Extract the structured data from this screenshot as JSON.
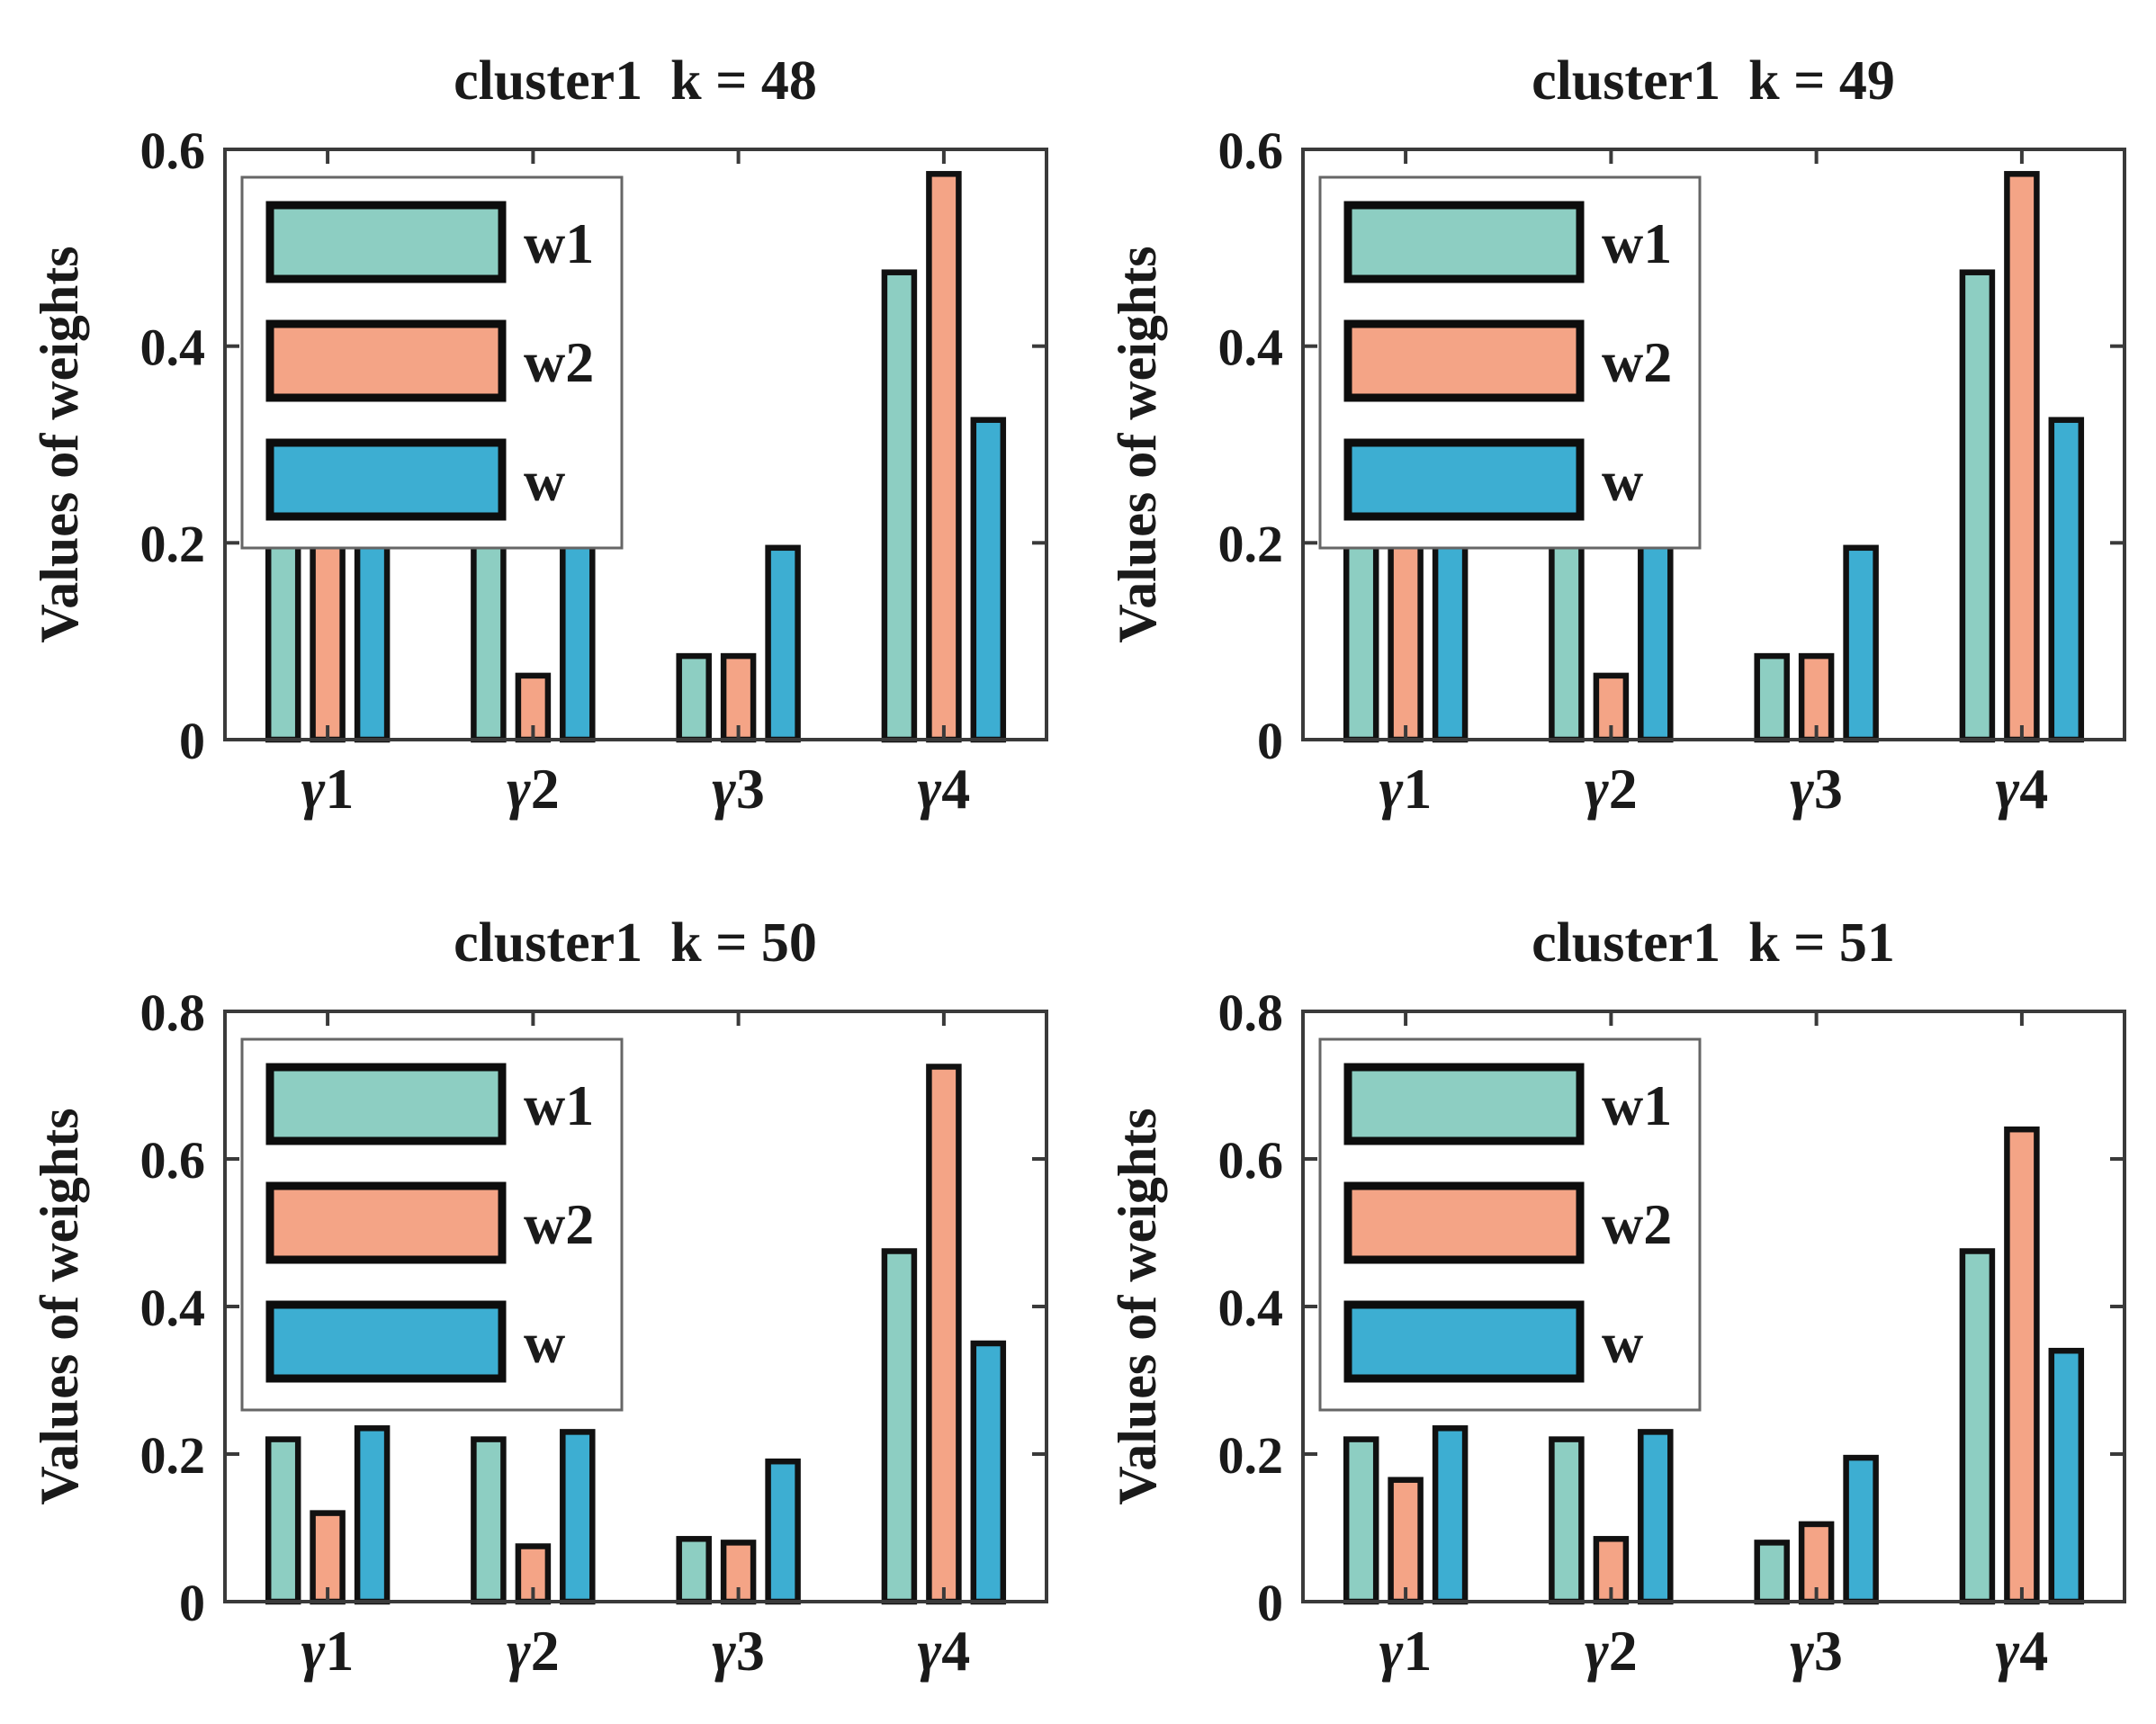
{
  "page": {
    "background": "#ffffff"
  },
  "colors": {
    "w1": "#8dcec2",
    "w2": "#f4a486",
    "w": "#3daed2",
    "bar_edge": "#111111",
    "axis": "#3a3a3a",
    "legend_border": "#666666",
    "text": "#1a1a1a"
  },
  "legend": {
    "entries": [
      "w1",
      "w2",
      "w"
    ],
    "position": "upper left"
  },
  "shared": {
    "ylabel": "Values of weights",
    "categories": [
      "γ1",
      "γ2",
      "γ3",
      "γ4"
    ]
  },
  "chart_data": [
    {
      "type": "bar",
      "title": "cluster1  k = 48",
      "categories": [
        "γ1",
        "γ2",
        "γ3",
        "γ4"
      ],
      "series": [
        {
          "name": "w1",
          "color": "#8dcec2",
          "values": [
            0.22,
            0.22,
            0.085,
            0.475
          ]
        },
        {
          "name": "w2",
          "color": "#f4a486",
          "values": [
            0.275,
            0.065,
            0.085,
            0.575
          ]
        },
        {
          "name": "w",
          "color": "#3daed2",
          "values": [
            0.24,
            0.24,
            0.195,
            0.325
          ]
        }
      ],
      "xlabel": "",
      "ylabel": "Values of weights",
      "ylim": [
        0,
        0.6
      ],
      "yticks": [
        0,
        0.2,
        0.4,
        0.6
      ],
      "grid": false,
      "legend_position": "upper left"
    },
    {
      "type": "bar",
      "title": "cluster1  k = 49",
      "categories": [
        "γ1",
        "γ2",
        "γ3",
        "γ4"
      ],
      "series": [
        {
          "name": "w1",
          "color": "#8dcec2",
          "values": [
            0.22,
            0.22,
            0.085,
            0.475
          ]
        },
        {
          "name": "w2",
          "color": "#f4a486",
          "values": [
            0.27,
            0.065,
            0.085,
            0.575
          ]
        },
        {
          "name": "w",
          "color": "#3daed2",
          "values": [
            0.24,
            0.24,
            0.195,
            0.325
          ]
        }
      ],
      "xlabel": "",
      "ylabel": "Values of weights",
      "ylim": [
        0,
        0.6
      ],
      "yticks": [
        0,
        0.2,
        0.4,
        0.6
      ],
      "grid": false,
      "legend_position": "upper left"
    },
    {
      "type": "bar",
      "title": "cluster1  k = 50",
      "categories": [
        "γ1",
        "γ2",
        "γ3",
        "γ4"
      ],
      "series": [
        {
          "name": "w1",
          "color": "#8dcec2",
          "values": [
            0.22,
            0.22,
            0.085,
            0.475
          ]
        },
        {
          "name": "w2",
          "color": "#f4a486",
          "values": [
            0.12,
            0.075,
            0.08,
            0.725
          ]
        },
        {
          "name": "w",
          "color": "#3daed2",
          "values": [
            0.235,
            0.23,
            0.19,
            0.35
          ]
        }
      ],
      "xlabel": "",
      "ylabel": "Values of weights",
      "ylim": [
        0,
        0.8
      ],
      "yticks": [
        0,
        0.2,
        0.4,
        0.6,
        0.8
      ],
      "grid": false,
      "legend_position": "upper left"
    },
    {
      "type": "bar",
      "title": "cluster1  k = 51",
      "categories": [
        "γ1",
        "γ2",
        "γ3",
        "γ4"
      ],
      "series": [
        {
          "name": "w1",
          "color": "#8dcec2",
          "values": [
            0.22,
            0.22,
            0.08,
            0.475
          ]
        },
        {
          "name": "w2",
          "color": "#f4a486",
          "values": [
            0.165,
            0.085,
            0.105,
            0.64
          ]
        },
        {
          "name": "w",
          "color": "#3daed2",
          "values": [
            0.235,
            0.23,
            0.195,
            0.34
          ]
        }
      ],
      "xlabel": "",
      "ylabel": "Values of weights",
      "ylim": [
        0,
        0.8
      ],
      "yticks": [
        0,
        0.2,
        0.4,
        0.6,
        0.8
      ],
      "grid": false,
      "legend_position": "upper left"
    }
  ]
}
